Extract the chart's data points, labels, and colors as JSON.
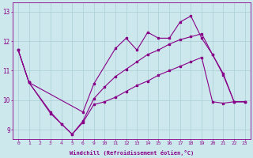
{
  "xlabel": "Windchill (Refroidissement éolien,°C)",
  "bg_color": "#cce8ec",
  "line_color": "#880088",
  "grid_color": "#aacdd4",
  "ylim": [
    8.7,
    13.3
  ],
  "yticks": [
    9,
    10,
    11,
    12,
    13
  ],
  "hours": [
    0,
    1,
    2,
    3,
    4,
    5,
    6,
    9,
    10,
    11,
    12,
    13,
    14,
    15,
    16,
    17,
    18,
    19,
    20,
    21,
    22,
    23
  ],
  "line1_x": [
    0,
    1,
    6,
    9,
    11,
    12,
    13,
    14,
    15,
    16,
    17,
    18,
    19,
    20,
    21,
    22,
    23
  ],
  "line1_y": [
    11.7,
    10.6,
    9.6,
    10.55,
    11.75,
    12.1,
    11.7,
    12.3,
    12.1,
    12.1,
    12.65,
    12.85,
    12.1,
    11.55,
    10.85,
    9.95,
    9.95
  ],
  "line2_x": [
    0,
    1,
    3,
    4,
    5,
    6,
    9,
    10,
    11,
    12,
    13,
    14,
    15,
    16,
    17,
    18,
    19,
    20,
    21,
    22,
    23
  ],
  "line2_y": [
    11.7,
    10.6,
    9.6,
    9.2,
    8.85,
    9.3,
    10.05,
    10.45,
    10.8,
    11.05,
    11.3,
    11.55,
    11.7,
    11.9,
    12.05,
    12.15,
    12.25,
    11.55,
    10.9,
    9.95,
    9.95
  ],
  "line3_x": [
    0,
    1,
    3,
    4,
    5,
    6,
    9,
    10,
    11,
    12,
    13,
    14,
    15,
    16,
    17,
    18,
    19,
    20,
    21,
    22,
    23
  ],
  "line3_y": [
    11.7,
    10.6,
    9.55,
    9.2,
    8.85,
    9.25,
    9.85,
    9.95,
    10.1,
    10.3,
    10.5,
    10.65,
    10.85,
    11.0,
    11.15,
    11.3,
    11.45,
    9.95,
    9.9,
    9.95,
    9.95
  ]
}
